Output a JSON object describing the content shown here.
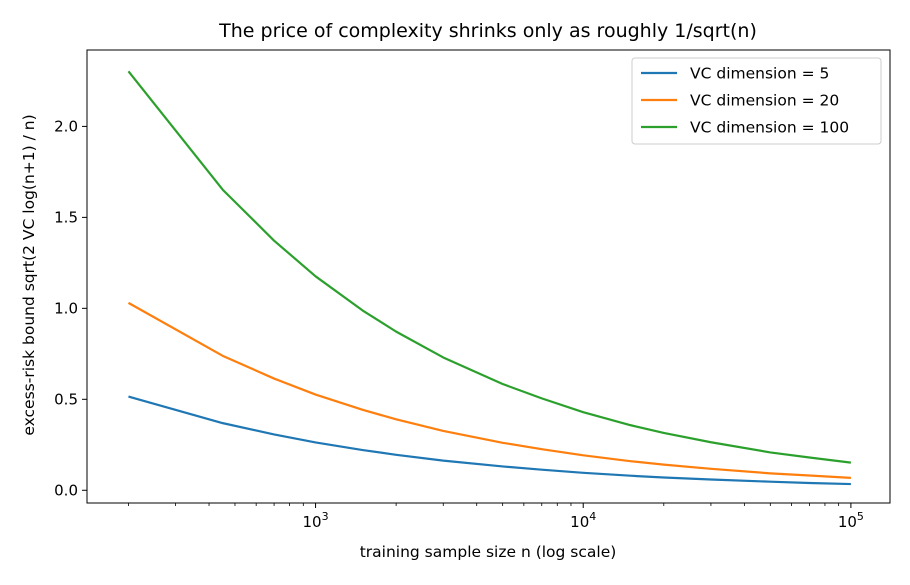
{
  "chart_data": {
    "type": "line",
    "title": "The price of complexity shrinks only as roughly 1/sqrt(n)",
    "xlabel": "training sample size n (log scale)",
    "ylabel": "excess-risk bound  sqrt(2 VC log(n+1) / n)",
    "xscale": "log",
    "xlim": [
      140,
      140000
    ],
    "ylim": [
      -0.07,
      2.42
    ],
    "yticks": [
      0.0,
      0.5,
      1.0,
      1.5,
      2.0
    ],
    "ytick_labels": [
      "0.0",
      "0.5",
      "1.0",
      "1.5",
      "2.0"
    ],
    "xticks": [
      1000,
      10000,
      100000
    ],
    "xtick_labels": [
      {
        "base": "10",
        "exp": "3"
      },
      {
        "base": "10",
        "exp": "4"
      },
      {
        "base": "10",
        "exp": "5"
      }
    ],
    "grid": false,
    "legend_position": "top-right",
    "x": [
      200,
      450,
      700,
      1000,
      1500,
      2000,
      3000,
      5000,
      7000,
      10000,
      15000,
      20000,
      30000,
      50000,
      70000,
      100000
    ],
    "series": [
      {
        "name": "VC dimension = 5",
        "color": "#1f77b4",
        "values": [
          0.515,
          0.369,
          0.307,
          0.263,
          0.221,
          0.195,
          0.163,
          0.131,
          0.113,
          0.096,
          0.08,
          0.07,
          0.059,
          0.047,
          0.04,
          0.034
        ]
      },
      {
        "name": "VC dimension = 20",
        "color": "#ff7f0e",
        "values": [
          1.03,
          0.739,
          0.614,
          0.526,
          0.442,
          0.39,
          0.326,
          0.261,
          0.226,
          0.192,
          0.16,
          0.141,
          0.118,
          0.093,
          0.081,
          0.068
        ]
      },
      {
        "name": "VC dimension = 100",
        "color": "#2ca02c",
        "values": [
          2.303,
          1.652,
          1.372,
          1.176,
          0.988,
          0.872,
          0.73,
          0.584,
          0.505,
          0.429,
          0.358,
          0.315,
          0.264,
          0.208,
          0.18,
          0.152
        ]
      }
    ]
  }
}
